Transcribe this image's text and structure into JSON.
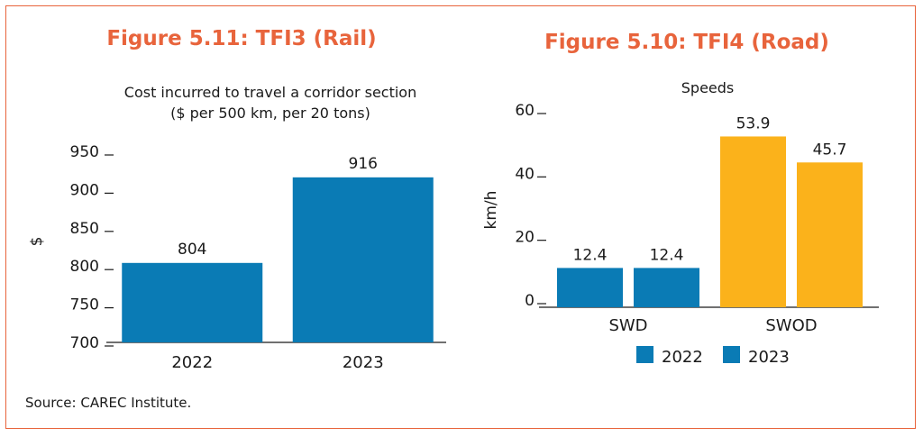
{
  "source": "Source: CAREC Institute.",
  "colors": {
    "accent": "#e8643c",
    "blue": "#0a7bb5",
    "gold": "#fbb21b"
  },
  "chart_data": [
    {
      "type": "bar",
      "title": "Figure 5.11: TFI3 (Rail)",
      "subtitle_line1": "Cost incurred to travel a corridor section",
      "subtitle_line2": "($ per 500 km, per 20 tons)",
      "ylabel": "$",
      "xlabel": "",
      "categories": [
        "2022",
        "2023"
      ],
      "values": [
        804,
        916
      ],
      "data_labels": [
        "804",
        "916"
      ],
      "ylim": [
        700,
        950
      ],
      "yticks": [
        "700",
        "750",
        "800",
        "850",
        "900",
        "950"
      ],
      "grid": false
    },
    {
      "type": "bar",
      "title": "Figure 5.10: TFI4 (Road)",
      "subtitle": "Speeds",
      "ylabel": "km/h",
      "xlabel": "",
      "categories": [
        "SWD",
        "SWOD"
      ],
      "series": [
        {
          "name": "2022",
          "values": [
            12.4,
            53.9
          ]
        },
        {
          "name": "2023",
          "values": [
            12.4,
            45.7
          ]
        }
      ],
      "data_labels": [
        [
          "12.4",
          "12.4"
        ],
        [
          "53.9",
          "45.7"
        ]
      ],
      "legend_labels": [
        "2022",
        "2023"
      ],
      "legend_position": "bottom",
      "ylim": [
        0,
        60
      ],
      "yticks": [
        "0",
        "20",
        "40",
        "60"
      ],
      "grid": false
    }
  ]
}
